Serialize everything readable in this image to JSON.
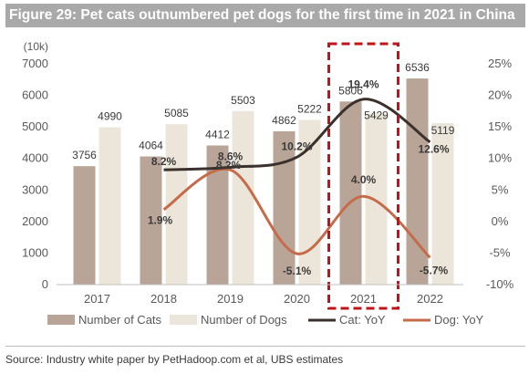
{
  "title": "Figure 29: Pet cats outnumbered pet dogs for the first time in 2021 in China",
  "source": "Source: Industry white paper by PetHadoop.com et al, UBS estimates",
  "colors": {
    "cats": "#b9a597",
    "dogs": "#ece5d9",
    "cat_yoy": "#3b312c",
    "dog_yoy": "#c66b49",
    "highlight": "#c0141a",
    "axis_text": "#595959"
  },
  "chart_data": {
    "type": "bar",
    "unit_label": "(10k)",
    "categories": [
      "2017",
      "2018",
      "2019",
      "2020",
      "2021",
      "2022"
    ],
    "y_left": {
      "ticks": [
        "0",
        "1000",
        "2000",
        "3000",
        "4000",
        "5000",
        "6000",
        "7000"
      ],
      "ylim": [
        0,
        7000
      ]
    },
    "y_right": {
      "ticks": [
        "-10%",
        "-5%",
        "0%",
        "5%",
        "10%",
        "15%",
        "20%",
        "25%"
      ],
      "ylim": [
        -10,
        25
      ]
    },
    "series": [
      {
        "name": "Number of Cats",
        "kind": "bar",
        "values": [
          3756,
          4064,
          4412,
          4862,
          5806,
          6536
        ],
        "labels": [
          "3756",
          "4064",
          "4412",
          "4862",
          "5806",
          "6536"
        ]
      },
      {
        "name": "Number of Dogs",
        "kind": "bar",
        "values": [
          4990,
          5085,
          5503,
          5222,
          5429,
          5119
        ],
        "labels": [
          "4990",
          "5085",
          "5503",
          "5222",
          "5429",
          "5119"
        ]
      },
      {
        "name": "Cat: YoY",
        "kind": "line",
        "axis": "right",
        "values": [
          null,
          8.2,
          8.6,
          10.2,
          19.4,
          12.6
        ],
        "labels": [
          "",
          "8.2%",
          "8.6%",
          "10.2%",
          "19.4%",
          "12.6%"
        ]
      },
      {
        "name": "Dog: YoY",
        "kind": "line",
        "axis": "right",
        "values": [
          null,
          1.9,
          8.2,
          -5.1,
          4.0,
          -5.7
        ],
        "labels": [
          "",
          "1.9%",
          "8.2%",
          "-5.1%",
          "4.0%",
          "-5.7%"
        ]
      }
    ],
    "highlight_category": "2021",
    "legend": "bottom",
    "grid": false
  }
}
